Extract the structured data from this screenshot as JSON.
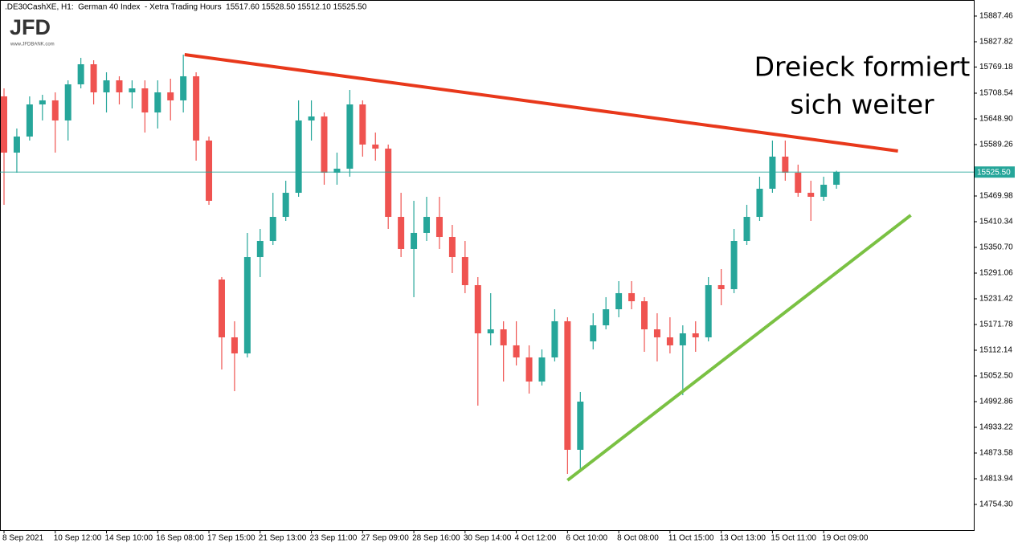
{
  "chart_data": {
    "type": "candlestick",
    "title": ".DE30CashXE, H1:  German 40 Index  - Xetra Trading Hours  15517.60 15528.50 15512.10 15525.50",
    "logo": "JFD",
    "logo_subtitle": "www.JFDBANK.com",
    "annotation": [
      "Dreieck formiert",
      "sich weiter"
    ],
    "categories": [
      "8 Sep 2021",
      null,
      null,
      null,
      "10 Sep 12:00",
      null,
      null,
      null,
      "14 Sep 10:00",
      null,
      null,
      null,
      "16 Sep 08:00",
      null,
      null,
      null,
      "17 Sep 15:00",
      null,
      null,
      null,
      "21 Sep 13:00",
      null,
      null,
      null,
      "23 Sep 11:00",
      null,
      null,
      null,
      "27 Sep 09:00",
      null,
      null,
      null,
      "28 Sep 16:00",
      null,
      null,
      null,
      "30 Sep 14:00",
      null,
      null,
      null,
      "4 Oct 12:00",
      null,
      null,
      null,
      "6 Oct 10:00",
      null,
      null,
      null,
      "8 Oct 08:00",
      null,
      null,
      null,
      "11 Oct 15:00",
      null,
      null,
      null,
      "13 Oct 13:00",
      null,
      null,
      null,
      "15 Oct 11:00",
      null,
      null,
      null,
      "19 Oct 09:00",
      null
    ],
    "series": [
      {
        "up_color": "#26a69a",
        "down_color": "#ef5350",
        "open": [
          15701.1,
          15570.6,
          15607.9,
          15682.4,
          15691.8,
          15645.2,
          15729.0,
          15775.6,
          15710.4,
          15738.3,
          15710.4,
          15719.7,
          15663.8,
          15710.4,
          15691.8,
          15747.7,
          15598.6,
          15276.2,
          15142.0,
          15104.7,
          15328.3,
          15365.6,
          15421.5,
          15477.4,
          15645.2,
          15654.5,
          15524.0,
          15533.3,
          15682.4,
          15589.3,
          15579.9,
          15421.5,
          15347.0,
          15384.3,
          15421.5,
          15374.9,
          15328.3,
          15263.1,
          15151.3,
          15160.6,
          15123.4,
          15095.4,
          15039.5,
          15095.4,
          15179.3,
          14881.1,
          15132.7,
          15169.9,
          15207.2,
          15244.5,
          15225.8,
          15160.6,
          15142.0,
          15123.4,
          15151.3,
          15142.0,
          15263.1,
          15253.8,
          15365.6,
          15421.5,
          15486.8,
          15561.3,
          15524.0,
          15477.4,
          15468.1,
          15496.1
        ],
        "high": [
          15719.7,
          15626.5,
          15701.1,
          15704.8,
          15710.4,
          15738.3,
          15790.5,
          15784.9,
          15757.0,
          15747.7,
          15738.3,
          15738.3,
          15738.3,
          15742.1,
          15798.0,
          15757.0,
          15607.9,
          15281.8,
          15179.3,
          15384.3,
          15393.6,
          15477.4,
          15505.4,
          15691.8,
          15691.8,
          15663.8,
          15570.6,
          15716.0,
          15691.8,
          15617.2,
          15589.3,
          15477.4,
          15458.8,
          15468.1,
          15468.1,
          15402.9,
          15365.6,
          15281.8,
          15244.5,
          15179.3,
          15179.3,
          15123.4,
          15114.0,
          15207.2,
          15188.6,
          15015.3,
          15197.9,
          15235.2,
          15272.4,
          15272.4,
          15235.2,
          15197.9,
          15188.6,
          15169.9,
          15179.3,
          15281.8,
          15300.4,
          15393.6,
          15449.5,
          15514.7,
          15598.6,
          15598.6,
          15542.7,
          15505.4,
          15514.7,
          15528.5
        ],
        "low": [
          15449.5,
          15524.0,
          15598.6,
          15645.2,
          15570.6,
          15598.6,
          15719.7,
          15682.4,
          15663.8,
          15682.4,
          15673.1,
          15617.2,
          15626.5,
          15645.2,
          15663.8,
          15552.0,
          15449.5,
          15067.4,
          15017.1,
          15095.4,
          15281.8,
          15356.3,
          15412.2,
          15468.1,
          15598.6,
          15496.1,
          15496.1,
          15514.7,
          15561.3,
          15552.0,
          15393.6,
          15328.3,
          15235.2,
          15365.6,
          15347.0,
          15291.1,
          15244.5,
          14983.6,
          15123.4,
          15039.5,
          15076.8,
          15011.5,
          15030.2,
          15086.1,
          14825.2,
          14834.5,
          15114.0,
          15160.6,
          15188.6,
          15207.2,
          15108.4,
          15086.1,
          15104.7,
          15007.8,
          15108.4,
          15132.7,
          15216.5,
          15244.5,
          15356.3,
          15412.2,
          15477.4,
          15505.4,
          15468.1,
          15412.2,
          15458.8,
          15486.8
        ],
        "close": [
          15570.6,
          15607.9,
          15682.4,
          15691.8,
          15645.2,
          15729.0,
          15775.6,
          15710.4,
          15738.3,
          15710.4,
          15719.7,
          15663.8,
          15710.4,
          15691.8,
          15747.7,
          15598.6,
          15458.8,
          15142.0,
          15104.7,
          15328.3,
          15365.6,
          15421.5,
          15477.4,
          15645.2,
          15654.5,
          15524.0,
          15533.3,
          15682.4,
          15589.3,
          15579.9,
          15421.5,
          15347.0,
          15384.3,
          15421.5,
          15374.9,
          15328.3,
          15263.1,
          15151.3,
          15160.6,
          15123.4,
          15095.4,
          15039.5,
          15095.4,
          15179.3,
          14881.1,
          14992.9,
          15169.9,
          15207.2,
          15244.5,
          15225.8,
          15160.6,
          15142.0,
          15123.4,
          15151.3,
          15142.0,
          15263.1,
          15253.8,
          15365.6,
          15421.5,
          15486.8,
          15561.3,
          15524.0,
          15477.4,
          15468.1,
          15496.1,
          15525.5
        ]
      }
    ],
    "last_price": {
      "value": 15525.5,
      "label": "15525.50",
      "color": "#26a69a"
    },
    "trendlines": [
      {
        "color": "#e8381b",
        "x": [
          14.1,
          69.8
        ],
        "y": [
          15798.0,
          15574.4
        ]
      },
      {
        "color": "#7ac143",
        "x": [
          44.0,
          70.8
        ],
        "y": [
          14810.3,
          15425.3
        ]
      }
    ],
    "ylim": [
      14694.7,
      15924.7
    ],
    "yticks": [
      15887.46,
      15827.82,
      15769.18,
      15708.54,
      {
        "value": 15648.9,
        "label": "15648.90"
      },
      15589.26,
      15469.98,
      15410.34,
      {
        "value": 15350.7,
        "label": "15350.70"
      },
      15291.06,
      15231.42,
      15171.78,
      15112.14,
      {
        "value": 15052.5,
        "label": "15052.50"
      },
      14992.86,
      14933.22,
      14873.58,
      14813.94,
      {
        "value": 14754.3,
        "label": "14754.30"
      }
    ]
  }
}
